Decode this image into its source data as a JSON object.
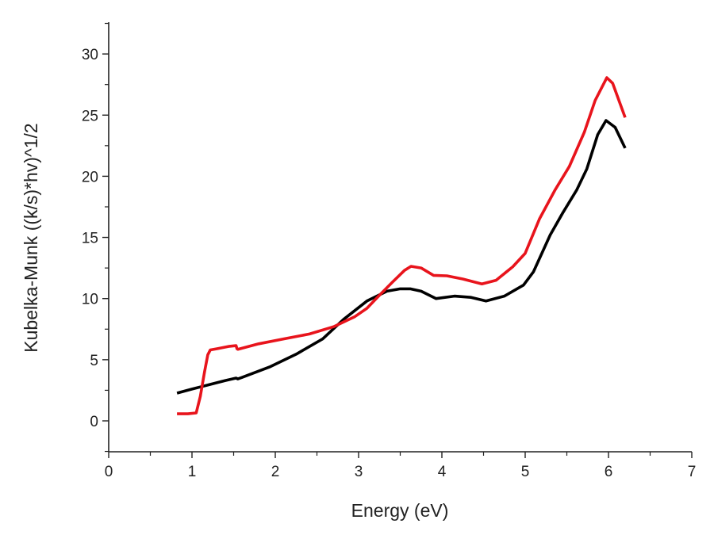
{
  "chart_data": {
    "type": "line",
    "title": "",
    "xlabel": "Energy (eV)",
    "ylabel": "Kubelka-Munk ((k/s)*hv)^1/2",
    "xlim": [
      0,
      7
    ],
    "ylim": [
      -2.5,
      32.6
    ],
    "xticks": [
      "0",
      "1",
      "2",
      "3",
      "4",
      "5",
      "6",
      "7"
    ],
    "yticks": [
      "0",
      "5",
      "10",
      "15",
      "20",
      "25",
      "30"
    ],
    "grid": false,
    "legend": "none",
    "series": [
      {
        "name": "black",
        "color": "#000000",
        "x": [
          0.82,
          1.0,
          1.2,
          1.4,
          1.53,
          1.55,
          1.6,
          1.93,
          2.25,
          2.57,
          2.82,
          3.1,
          3.34,
          3.5,
          3.62,
          3.75,
          3.93,
          4.15,
          4.35,
          4.53,
          4.75,
          4.98,
          5.1,
          5.3,
          5.45,
          5.62,
          5.74,
          5.87,
          5.97,
          6.08,
          6.2
        ],
        "y": [
          2.27,
          2.6,
          2.95,
          3.3,
          3.5,
          3.43,
          3.55,
          4.4,
          5.45,
          6.7,
          8.3,
          9.8,
          10.6,
          10.8,
          10.8,
          10.6,
          10.0,
          10.2,
          10.1,
          9.8,
          10.2,
          11.1,
          12.2,
          15.2,
          17.0,
          18.9,
          20.6,
          23.4,
          24.56,
          24.0,
          22.3
        ]
      },
      {
        "name": "red",
        "color": "#e8141c",
        "x": [
          0.82,
          0.95,
          1.05,
          1.1,
          1.15,
          1.19,
          1.22,
          1.3,
          1.45,
          1.53,
          1.54,
          1.55,
          1.8,
          2.1,
          2.41,
          2.7,
          2.95,
          3.1,
          3.24,
          3.4,
          3.55,
          3.63,
          3.75,
          3.9,
          4.06,
          4.25,
          4.48,
          4.65,
          4.85,
          5.0,
          5.17,
          5.36,
          5.53,
          5.71,
          5.84,
          5.98,
          6.05,
          6.2
        ],
        "y": [
          0.58,
          0.58,
          0.65,
          2.0,
          4.0,
          5.4,
          5.8,
          5.9,
          6.1,
          6.15,
          5.9,
          5.85,
          6.3,
          6.7,
          7.1,
          7.7,
          8.5,
          9.2,
          10.2,
          11.3,
          12.3,
          12.64,
          12.5,
          11.9,
          11.86,
          11.6,
          11.2,
          11.5,
          12.6,
          13.7,
          16.5,
          18.9,
          20.8,
          23.6,
          26.2,
          28.06,
          27.6,
          24.8
        ]
      }
    ]
  }
}
